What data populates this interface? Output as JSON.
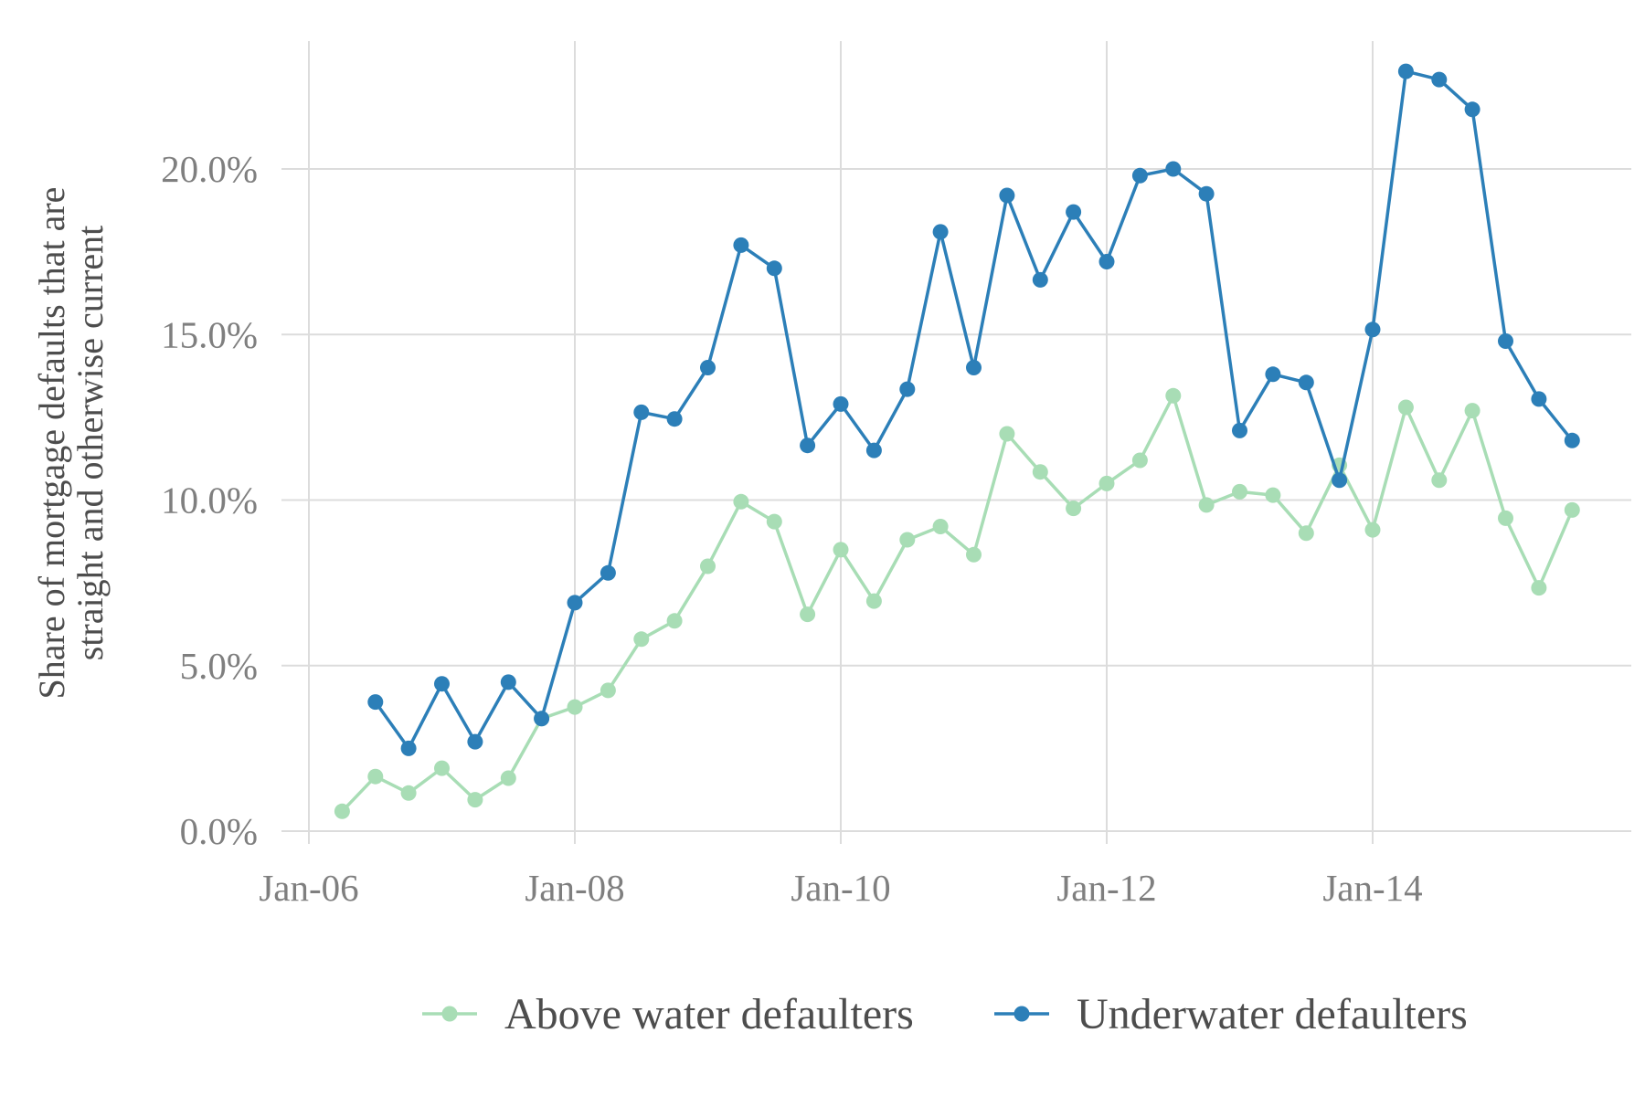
{
  "chart_data": {
    "type": "line",
    "title": "",
    "xlabel": "",
    "ylabel_lines": [
      "Share of mortgage defaults that are",
      "straight and otherwise current"
    ],
    "x_ticks": [
      {
        "value": "2006-01",
        "label": "Jan-06"
      },
      {
        "value": "2008-01",
        "label": "Jan-08"
      },
      {
        "value": "2010-01",
        "label": "Jan-10"
      },
      {
        "value": "2012-01",
        "label": "Jan-12"
      },
      {
        "value": "2014-01",
        "label": "Jan-14"
      }
    ],
    "y_ticks": [
      {
        "value": 0,
        "label": "0.0%"
      },
      {
        "value": 5,
        "label": "5.0%"
      },
      {
        "value": 10,
        "label": "10.0%"
      },
      {
        "value": 15,
        "label": "15.0%"
      },
      {
        "value": 20,
        "label": "20.0%"
      }
    ],
    "xlim": [
      "2006-01",
      "2016-01"
    ],
    "ylim": [
      0,
      24
    ],
    "grid": true,
    "legend_position": "bottom",
    "series": [
      {
        "name": "Above water defaulters",
        "color": "#a8ddb5",
        "points": [
          {
            "x": "2006-04",
            "y": 0.6
          },
          {
            "x": "2006-07",
            "y": 1.65
          },
          {
            "x": "2006-10",
            "y": 1.15
          },
          {
            "x": "2007-01",
            "y": 1.9
          },
          {
            "x": "2007-04",
            "y": 0.95
          },
          {
            "x": "2007-07",
            "y": 1.6
          },
          {
            "x": "2007-10",
            "y": 3.4
          },
          {
            "x": "2008-01",
            "y": 3.75
          },
          {
            "x": "2008-04",
            "y": 4.25
          },
          {
            "x": "2008-07",
            "y": 5.8
          },
          {
            "x": "2008-10",
            "y": 6.35
          },
          {
            "x": "2009-01",
            "y": 8.0
          },
          {
            "x": "2009-04",
            "y": 9.95
          },
          {
            "x": "2009-07",
            "y": 9.35
          },
          {
            "x": "2009-10",
            "y": 6.55
          },
          {
            "x": "2010-01",
            "y": 8.5
          },
          {
            "x": "2010-04",
            "y": 6.95
          },
          {
            "x": "2010-07",
            "y": 8.8
          },
          {
            "x": "2010-10",
            "y": 9.2
          },
          {
            "x": "2011-01",
            "y": 8.35
          },
          {
            "x": "2011-04",
            "y": 12.0
          },
          {
            "x": "2011-07",
            "y": 10.85
          },
          {
            "x": "2011-10",
            "y": 9.75
          },
          {
            "x": "2012-01",
            "y": 10.5
          },
          {
            "x": "2012-04",
            "y": 11.2
          },
          {
            "x": "2012-07",
            "y": 13.15
          },
          {
            "x": "2012-10",
            "y": 9.85
          },
          {
            "x": "2013-01",
            "y": 10.25
          },
          {
            "x": "2013-04",
            "y": 10.15
          },
          {
            "x": "2013-07",
            "y": 9.0
          },
          {
            "x": "2013-10",
            "y": 11.05
          },
          {
            "x": "2014-01",
            "y": 9.1
          },
          {
            "x": "2014-04",
            "y": 12.8
          },
          {
            "x": "2014-07",
            "y": 10.6
          },
          {
            "x": "2014-10",
            "y": 12.7
          },
          {
            "x": "2015-01",
            "y": 9.45
          },
          {
            "x": "2015-04",
            "y": 7.35
          },
          {
            "x": "2015-07",
            "y": 9.7
          }
        ]
      },
      {
        "name": "Underwater defaulters",
        "color": "#2c7fb8",
        "points": [
          {
            "x": "2006-07",
            "y": 3.9
          },
          {
            "x": "2006-10",
            "y": 2.5
          },
          {
            "x": "2007-01",
            "y": 4.45
          },
          {
            "x": "2007-04",
            "y": 2.7
          },
          {
            "x": "2007-07",
            "y": 4.5
          },
          {
            "x": "2007-10",
            "y": 3.4
          },
          {
            "x": "2008-01",
            "y": 6.9
          },
          {
            "x": "2008-04",
            "y": 7.8
          },
          {
            "x": "2008-07",
            "y": 12.65
          },
          {
            "x": "2008-10",
            "y": 12.45
          },
          {
            "x": "2009-01",
            "y": 14.0
          },
          {
            "x": "2009-04",
            "y": 17.7
          },
          {
            "x": "2009-07",
            "y": 17.0
          },
          {
            "x": "2009-10",
            "y": 11.65
          },
          {
            "x": "2010-01",
            "y": 12.9
          },
          {
            "x": "2010-04",
            "y": 11.5
          },
          {
            "x": "2010-07",
            "y": 13.35
          },
          {
            "x": "2010-10",
            "y": 18.1
          },
          {
            "x": "2011-01",
            "y": 14.0
          },
          {
            "x": "2011-04",
            "y": 19.2
          },
          {
            "x": "2011-07",
            "y": 16.65
          },
          {
            "x": "2011-10",
            "y": 18.7
          },
          {
            "x": "2012-01",
            "y": 17.2
          },
          {
            "x": "2012-04",
            "y": 19.8
          },
          {
            "x": "2012-07",
            "y": 20.0
          },
          {
            "x": "2012-10",
            "y": 19.25
          },
          {
            "x": "2013-01",
            "y": 12.1
          },
          {
            "x": "2013-04",
            "y": 13.8
          },
          {
            "x": "2013-07",
            "y": 13.55
          },
          {
            "x": "2013-10",
            "y": 10.6
          },
          {
            "x": "2014-01",
            "y": 15.15
          },
          {
            "x": "2014-04",
            "y": 22.95
          },
          {
            "x": "2014-07",
            "y": 22.7
          },
          {
            "x": "2014-10",
            "y": 21.8
          },
          {
            "x": "2015-01",
            "y": 14.8
          },
          {
            "x": "2015-04",
            "y": 13.05
          },
          {
            "x": "2015-07",
            "y": 11.8
          }
        ]
      }
    ]
  }
}
